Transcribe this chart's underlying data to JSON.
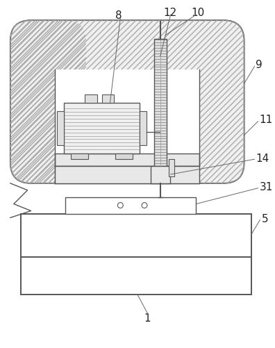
{
  "bg": "#ffffff",
  "lc": "#555555",
  "mc": "#888888",
  "hc": "#aaaaaa",
  "fc_white": "#ffffff",
  "fc_light": "#f5f5f5",
  "fc_mid": "#e8e8e8",
  "fc_dark": "#d8d8d8"
}
